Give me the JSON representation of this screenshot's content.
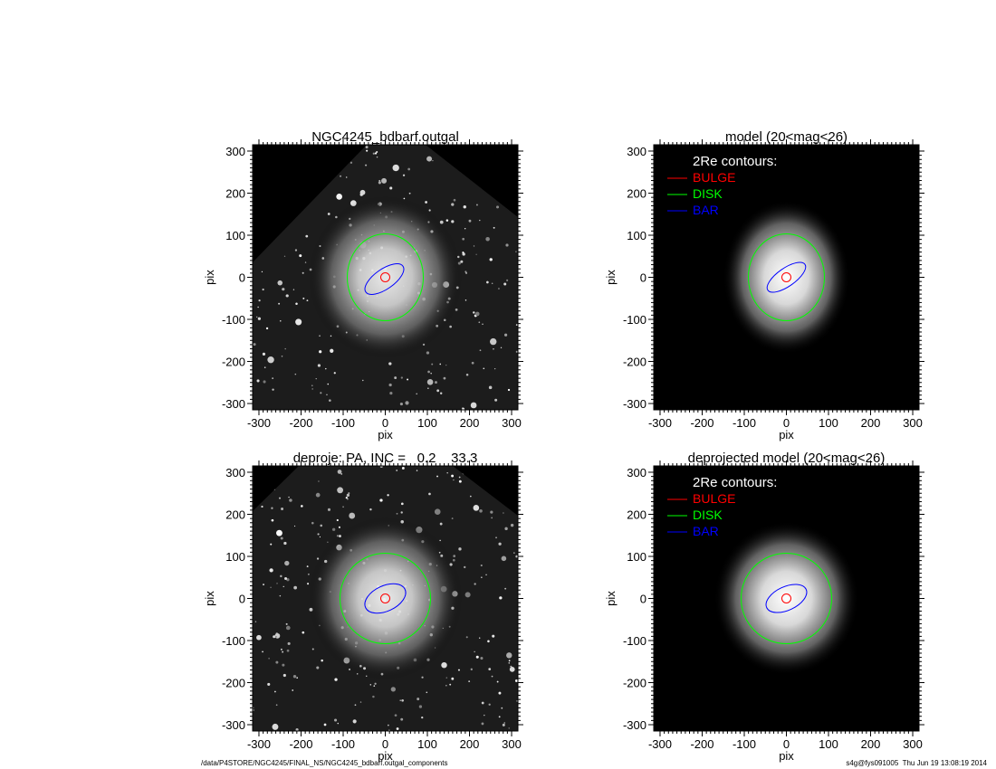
{
  "chart_data": [
    {
      "type": "image",
      "title": "NGC4245_bdbarf.outgal",
      "xlabel": "pix",
      "ylabel": "pix",
      "xlim": [
        -315,
        315
      ],
      "ylim": [
        -315,
        315
      ],
      "xticks": [
        -300,
        -200,
        -100,
        0,
        100,
        200,
        300
      ],
      "yticks": [
        -300,
        -200,
        -100,
        0,
        100,
        200,
        300
      ]
    },
    {
      "type": "image",
      "title": "model (20<mag<26)",
      "xlabel": "pix",
      "ylabel": "pix",
      "xlim": [
        -315,
        315
      ],
      "ylim": [
        -315,
        315
      ],
      "xticks": [
        -300,
        -200,
        -100,
        0,
        100,
        200,
        300
      ],
      "yticks": [
        -300,
        -200,
        -100,
        0,
        100,
        200,
        300
      ],
      "legend_title": "2Re contours:",
      "series": [
        {
          "name": "BULGE",
          "color": "#ff0000"
        },
        {
          "name": "DISK",
          "color": "#00ff00"
        },
        {
          "name": "BAR",
          "color": "#0000ff"
        }
      ]
    },
    {
      "type": "image",
      "title": "deproje: PA, INC =   0.2    33.3",
      "xlabel": "pix",
      "ylabel": "pix",
      "xlim": [
        -315,
        315
      ],
      "ylim": [
        -315,
        315
      ],
      "xticks": [
        -300,
        -200,
        -100,
        0,
        100,
        200,
        300
      ],
      "yticks": [
        -300,
        -200,
        -100,
        0,
        100,
        200,
        300
      ]
    },
    {
      "type": "image",
      "title": "deprojected model (20<mag<26)",
      "xlabel": "pix",
      "ylabel": "pix",
      "xlim": [
        -315,
        315
      ],
      "ylim": [
        -315,
        315
      ],
      "xticks": [
        -300,
        -200,
        -100,
        0,
        100,
        200,
        300
      ],
      "yticks": [
        -300,
        -200,
        -100,
        0,
        100,
        200,
        300
      ],
      "legend_title": "2Re contours:",
      "series": [
        {
          "name": "BULGE",
          "color": "#ff0000"
        },
        {
          "name": "DISK",
          "color": "#00ff00"
        },
        {
          "name": "BAR",
          "color": "#0000ff"
        }
      ]
    }
  ],
  "footer": {
    "left": "/data/P4STORE/NGC4245/FINAL_NS/NGC4245_bdbarf.outgal_components",
    "right": "s4g@fys091005  Thu Jun 19 13:08:19 2014"
  }
}
